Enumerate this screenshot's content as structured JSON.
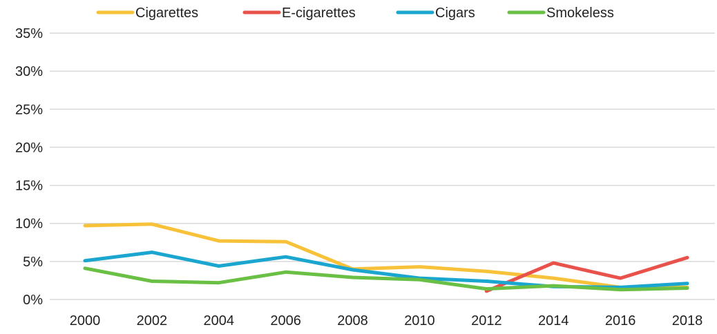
{
  "chart_data": {
    "type": "line",
    "title": "",
    "xlabel": "",
    "ylabel": "",
    "ylim": [
      0,
      35
    ],
    "y_tick_values": [
      0,
      5,
      10,
      15,
      20,
      25,
      30,
      35
    ],
    "y_tick_labels": [
      "0%",
      "5%",
      "10%",
      "15%",
      "20%",
      "25%",
      "30%",
      "35%"
    ],
    "x": [
      "2000",
      "2002",
      "2004",
      "2006",
      "2008",
      "2010",
      "2012",
      "2014",
      "2016",
      "2018"
    ],
    "grid": true,
    "legend_position": "top",
    "series": [
      {
        "name": "Cigarettes",
        "color": "#f7c23a",
        "values": [
          9.7,
          9.9,
          7.7,
          7.6,
          4.0,
          4.3,
          3.7,
          2.8,
          1.6,
          1.6
        ]
      },
      {
        "name": "E-cigarettes",
        "color": "#e8524a",
        "values": [
          null,
          null,
          null,
          null,
          null,
          null,
          1.1,
          4.8,
          2.8,
          5.5
        ]
      },
      {
        "name": "Cigars",
        "color": "#1aa6cf",
        "values": [
          5.1,
          6.2,
          4.4,
          5.6,
          3.9,
          2.8,
          2.4,
          1.7,
          1.6,
          2.1
        ]
      },
      {
        "name": "Smokeless",
        "color": "#6abf45",
        "values": [
          4.1,
          2.4,
          2.2,
          3.6,
          2.9,
          2.6,
          1.4,
          1.8,
          1.3,
          1.5
        ]
      }
    ]
  }
}
